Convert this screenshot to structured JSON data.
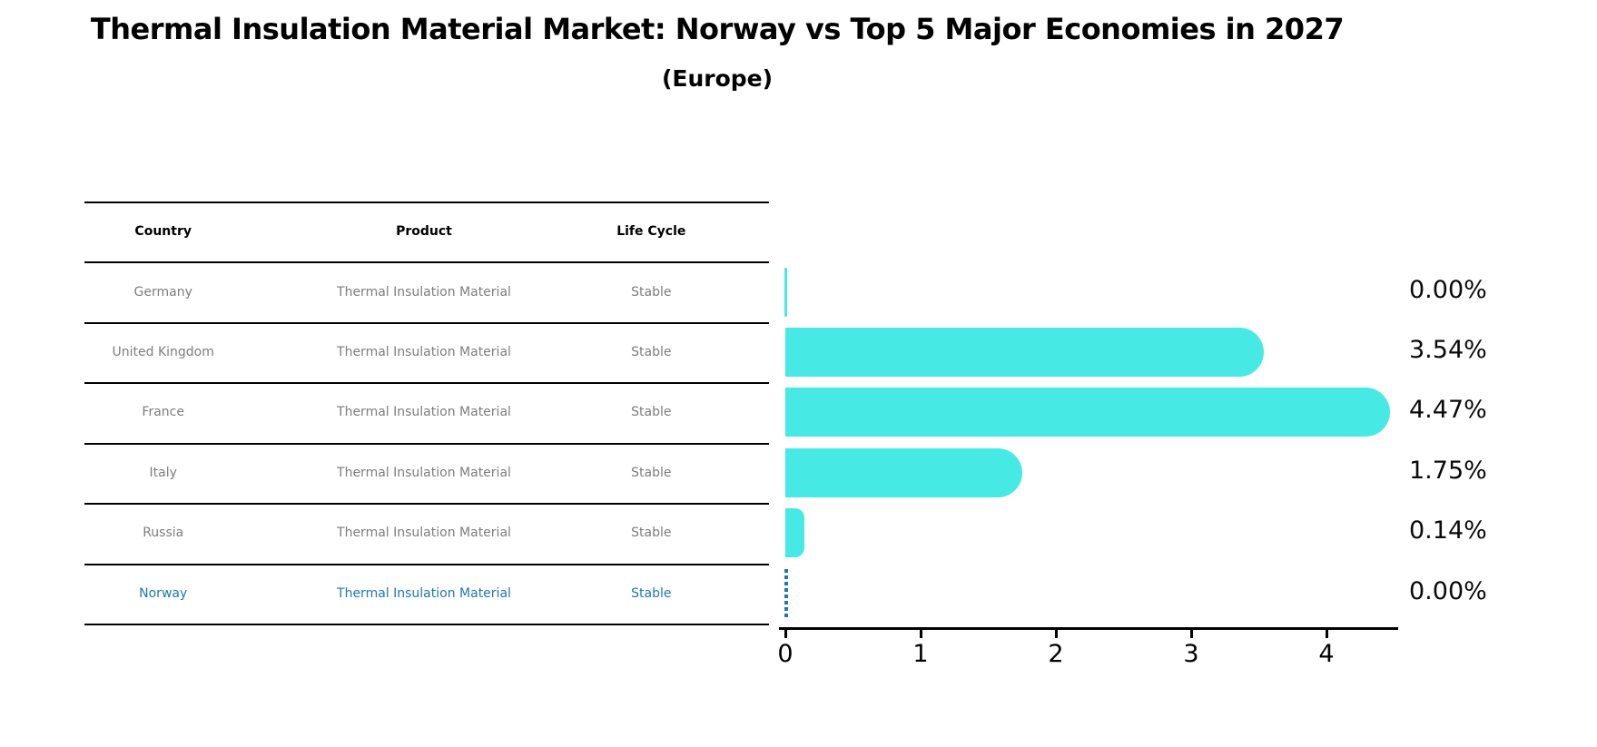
{
  "title": "Thermal Insulation Material Market: Norway vs Top 5 Major Economies in 2027",
  "subtitle": "(Europe)",
  "table": {
    "headers": [
      "Country",
      "Product",
      "Life Cycle"
    ],
    "rows": [
      {
        "country": "Germany",
        "product": "Thermal Insulation Material",
        "life_cycle": "Stable",
        "highlight": false
      },
      {
        "country": "United Kingdom",
        "product": "Thermal Insulation Material",
        "life_cycle": "Stable",
        "highlight": false
      },
      {
        "country": "France",
        "product": "Thermal Insulation Material",
        "life_cycle": "Stable",
        "highlight": false
      },
      {
        "country": "Italy",
        "product": "Thermal Insulation Material",
        "life_cycle": "Stable",
        "highlight": false
      },
      {
        "country": "Russia",
        "product": "Thermal Insulation Material",
        "life_cycle": "Stable",
        "highlight": false
      },
      {
        "country": "Norway",
        "product": "Thermal Insulation Material",
        "life_cycle": "Stable",
        "highlight": true
      }
    ]
  },
  "chart_data": {
    "type": "bar",
    "orientation": "horizontal",
    "title": "",
    "xlabel": "",
    "ylabel": "",
    "categories": [
      "Germany",
      "United Kingdom",
      "France",
      "Italy",
      "Russia",
      "Norway"
    ],
    "values": [
      0.0,
      3.54,
      4.47,
      1.75,
      0.14,
      0.0
    ],
    "value_labels": [
      "0.00%",
      "3.54%",
      "4.47%",
      "1.75%",
      "0.14%",
      "0.00%"
    ],
    "x_ticks": [
      0,
      1,
      2,
      3,
      4
    ],
    "xlim": [
      0,
      4.58
    ],
    "grid": false,
    "legend": "none",
    "bar_color": "#46e9e4",
    "highlight_color": "#1f77b4",
    "highlight_index": 5,
    "highlight_marker": "dashed-zero-line",
    "value_label_position": "right"
  },
  "colors": {
    "background": "#ffffff",
    "bar": "#46e9e4",
    "norway_blue": "#1f77b4",
    "table_text": "#7d7d7d",
    "axis": "#000000"
  }
}
